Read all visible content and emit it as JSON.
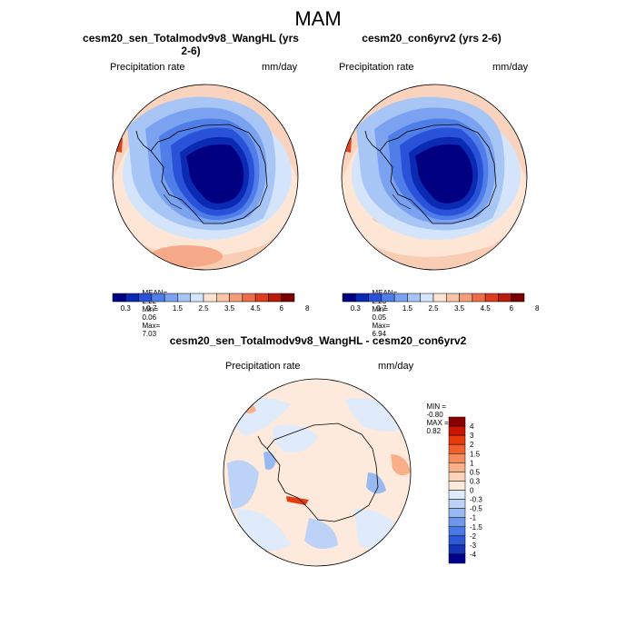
{
  "figure": {
    "season": "MAM"
  },
  "panels": [
    {
      "title": "cesm20_sen_Totalmodv9v8_WangHL (yrs 2-6)",
      "variable": "Precipitation rate",
      "units": "mm/day",
      "stats": {
        "mean_label": "MEAN=",
        "mean": "2.22",
        "min_label": "Min=",
        "min": "0.06",
        "max_label": "Max=",
        "max": "7.03"
      }
    },
    {
      "title": "cesm20_con6yrv2 (yrs 2-6)",
      "variable": "Precipitation rate",
      "units": "mm/day",
      "stats": {
        "mean_label": "MEAN=",
        "mean": "2.23",
        "min_label": "Min=",
        "min": "0.05",
        "max_label": "Max=",
        "max": "6.94"
      }
    }
  ],
  "diff_panel": {
    "title": "cesm20_sen_Totalmodv9v8_WangHL - cesm20_con6yrv2",
    "variable": "Precipitation rate",
    "units": "mm/day",
    "stats": {
      "min_label": "MIN =",
      "min": "-0.80",
      "max_label": "MAX =",
      "max": "0.82"
    }
  },
  "colorbars": {
    "abs": {
      "colors": [
        "#000080",
        "#0a2ab4",
        "#2a52d8",
        "#4f7ee8",
        "#7aa2f0",
        "#a6c4f6",
        "#d4e6fb",
        "#fde3d2",
        "#f9c3a6",
        "#f59d78",
        "#ec6e48",
        "#dd3d1c",
        "#b81c0b",
        "#780000"
      ],
      "labels": [
        "0.3",
        "0.7",
        "1.5",
        "2.5",
        "3.5",
        "4.5",
        "6",
        "8"
      ]
    },
    "diff": {
      "colors": [
        "#8b0000",
        "#c81400",
        "#e83a0a",
        "#f0602c",
        "#f58a5a",
        "#f9b08a",
        "#fcd2b8",
        "#fdeadc",
        "#dfeafb",
        "#bcd2f6",
        "#98baf1",
        "#7098ea",
        "#4a78e4",
        "#2d58d6",
        "#1532b8",
        "#00008c"
      ],
      "labels": [
        "4",
        "3",
        "2",
        "1.5",
        "1",
        "0.5",
        "0.3",
        "0",
        "-0.3",
        "-0.5",
        "-1",
        "-1.5",
        "-2",
        "-3",
        "-4"
      ]
    }
  }
}
